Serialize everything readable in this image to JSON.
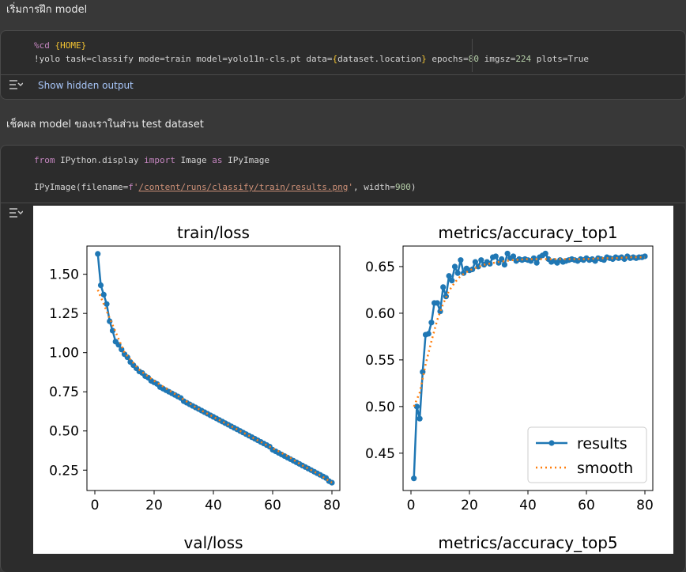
{
  "headings": {
    "train_section": "เริ่มการฝึก model",
    "test_section": "เช็คผล model ของเราในส่วน test dataset"
  },
  "cell1": {
    "line1": {
      "magic": "%cd",
      "var": "{HOME}"
    },
    "line2": {
      "prefix": "!yolo task=classify mode=train model=yolo11n-cls.pt data=",
      "brace_open": "{",
      "var": "dataset.location",
      "brace_close": "}",
      "epochs_label": " epochs=",
      "epochs_value": "80",
      "imgsz_label": " imgsz=",
      "imgsz_value": "224",
      "plots": " plots=True"
    },
    "show_hidden_output": "Show hidden output"
  },
  "cell2": {
    "line1": {
      "from": "from",
      "module": " IPython.display ",
      "import": "import",
      "name": " Image ",
      "as": "as",
      "alias": " IPyImage"
    },
    "line2": {
      "call": "IPyImage(filename=",
      "fprefix": "f",
      "q1": "'",
      "path": "/content/runs/classify/train/results.png",
      "q2": "'",
      "rest": ", width=",
      "width": "900",
      "close": ")"
    }
  },
  "colors": {
    "results": "#1f77b4",
    "smooth": "#ff7f0e"
  },
  "chart_data": [
    {
      "type": "line",
      "title": "train/loss",
      "xlim": [
        0,
        80
      ],
      "ylim": [
        0.12,
        1.68
      ],
      "xticks": [
        "0",
        "20",
        "40",
        "60",
        "80"
      ],
      "yticks": [
        "0.25",
        "0.50",
        "0.75",
        "1.00",
        "1.25",
        "1.50"
      ],
      "series": [
        {
          "name": "results",
          "x": [
            1,
            2,
            3,
            4,
            5,
            6,
            7,
            8,
            9,
            10,
            11,
            12,
            13,
            14,
            15,
            16,
            17,
            18,
            19,
            20,
            21,
            22,
            23,
            24,
            25,
            26,
            27,
            28,
            29,
            30,
            31,
            32,
            33,
            34,
            35,
            36,
            37,
            38,
            39,
            40,
            41,
            42,
            43,
            44,
            45,
            46,
            47,
            48,
            49,
            50,
            51,
            52,
            53,
            54,
            55,
            56,
            57,
            58,
            59,
            60,
            61,
            62,
            63,
            64,
            65,
            66,
            67,
            68,
            69,
            70,
            71,
            72,
            73,
            74,
            75,
            76,
            77,
            78,
            79,
            80
          ],
          "y": [
            1.63,
            1.43,
            1.37,
            1.31,
            1.2,
            1.14,
            1.07,
            1.05,
            1.02,
            0.99,
            0.97,
            0.94,
            0.92,
            0.9,
            0.88,
            0.87,
            0.85,
            0.84,
            0.82,
            0.81,
            0.8,
            0.78,
            0.77,
            0.76,
            0.75,
            0.74,
            0.73,
            0.72,
            0.71,
            0.69,
            0.68,
            0.67,
            0.66,
            0.65,
            0.64,
            0.63,
            0.62,
            0.61,
            0.6,
            0.59,
            0.58,
            0.57,
            0.56,
            0.55,
            0.54,
            0.53,
            0.52,
            0.51,
            0.5,
            0.49,
            0.48,
            0.47,
            0.46,
            0.45,
            0.44,
            0.43,
            0.42,
            0.41,
            0.4,
            0.38,
            0.37,
            0.36,
            0.35,
            0.34,
            0.33,
            0.32,
            0.31,
            0.3,
            0.29,
            0.28,
            0.27,
            0.26,
            0.25,
            0.24,
            0.23,
            0.22,
            0.21,
            0.2,
            0.18,
            0.17
          ]
        },
        {
          "name": "smooth",
          "x": [
            1,
            5,
            10,
            15,
            20,
            25,
            30,
            35,
            40,
            45,
            50,
            55,
            60,
            65,
            70,
            75,
            80
          ],
          "y": [
            1.4,
            1.22,
            1.0,
            0.89,
            0.82,
            0.76,
            0.7,
            0.64,
            0.59,
            0.54,
            0.49,
            0.44,
            0.39,
            0.34,
            0.28,
            0.23,
            0.17
          ]
        }
      ]
    },
    {
      "type": "line",
      "title": "metrics/accuracy_top1",
      "xlim": [
        0,
        80
      ],
      "ylim": [
        0.41,
        0.672
      ],
      "xticks": [
        "0",
        "20",
        "40",
        "60",
        "80"
      ],
      "yticks": [
        "0.45",
        "0.50",
        "0.55",
        "0.60",
        "0.65"
      ],
      "legend": "bottom-right",
      "legend_labels": [
        "results",
        "smooth"
      ],
      "series": [
        {
          "name": "results",
          "x": [
            1,
            2,
            3,
            4,
            5,
            6,
            7,
            8,
            9,
            10,
            11,
            12,
            13,
            14,
            15,
            16,
            17,
            18,
            19,
            20,
            21,
            22,
            23,
            24,
            25,
            26,
            27,
            28,
            29,
            30,
            31,
            32,
            33,
            34,
            35,
            36,
            37,
            38,
            39,
            40,
            41,
            42,
            43,
            44,
            45,
            46,
            47,
            48,
            49,
            50,
            51,
            52,
            53,
            54,
            55,
            56,
            57,
            58,
            59,
            60,
            61,
            62,
            63,
            64,
            65,
            66,
            67,
            68,
            69,
            70,
            71,
            72,
            73,
            74,
            75,
            76,
            77,
            78,
            79,
            80
          ],
          "y": [
            0.423,
            0.5,
            0.487,
            0.537,
            0.577,
            0.578,
            0.59,
            0.611,
            0.611,
            0.602,
            0.628,
            0.618,
            0.64,
            0.635,
            0.65,
            0.643,
            0.657,
            0.643,
            0.648,
            0.646,
            0.647,
            0.655,
            0.65,
            0.657,
            0.652,
            0.655,
            0.653,
            0.66,
            0.661,
            0.654,
            0.658,
            0.652,
            0.664,
            0.659,
            0.661,
            0.656,
            0.658,
            0.657,
            0.658,
            0.657,
            0.656,
            0.659,
            0.654,
            0.66,
            0.662,
            0.664,
            0.658,
            0.655,
            0.656,
            0.654,
            0.657,
            0.655,
            0.656,
            0.657,
            0.658,
            0.657,
            0.656,
            0.658,
            0.657,
            0.659,
            0.657,
            0.658,
            0.656,
            0.659,
            0.658,
            0.657,
            0.66,
            0.659,
            0.658,
            0.66,
            0.659,
            0.66,
            0.658,
            0.661,
            0.659,
            0.66,
            0.659,
            0.66,
            0.66,
            0.661
          ]
        },
        {
          "name": "smooth",
          "x": [
            1,
            3,
            5,
            7,
            9,
            11,
            13,
            15,
            17,
            20,
            25,
            30,
            35,
            40,
            45,
            50,
            55,
            60,
            65,
            70,
            75,
            80
          ],
          "y": [
            0.5,
            0.515,
            0.545,
            0.57,
            0.593,
            0.61,
            0.624,
            0.633,
            0.64,
            0.646,
            0.652,
            0.655,
            0.657,
            0.658,
            0.658,
            0.658,
            0.658,
            0.658,
            0.659,
            0.659,
            0.66,
            0.66
          ]
        }
      ]
    },
    {
      "type": "line",
      "title": "val/loss"
    },
    {
      "type": "line",
      "title": "metrics/accuracy_top5"
    }
  ]
}
